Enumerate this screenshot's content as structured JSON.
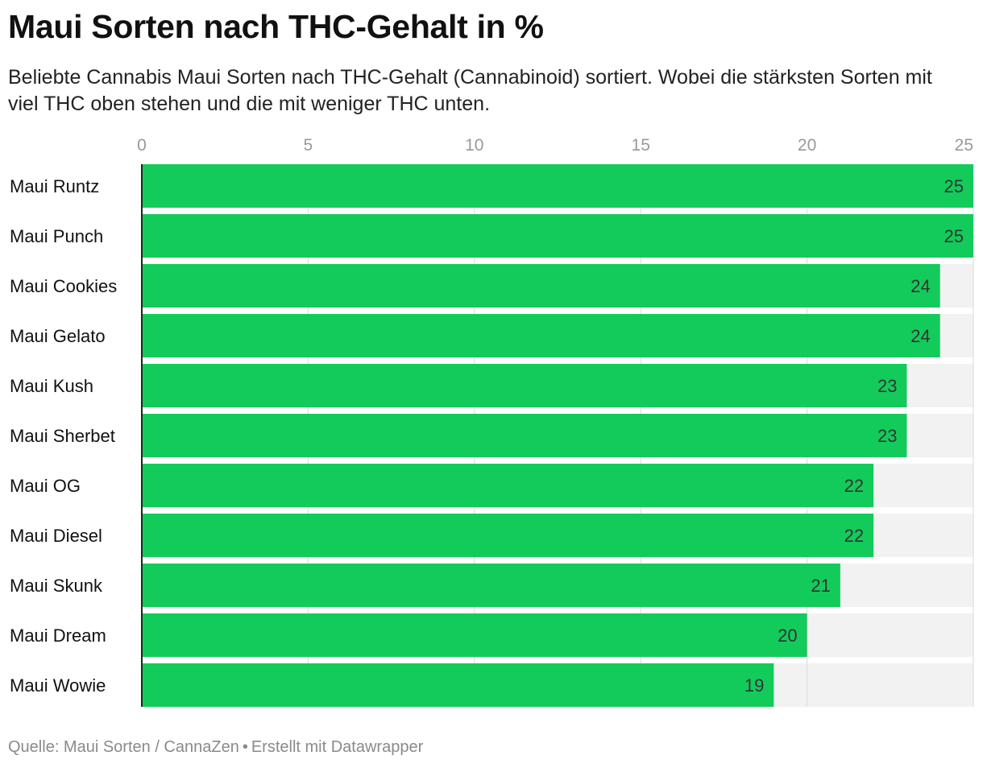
{
  "header": {
    "title": "Maui Sorten nach THC-Gehalt in %",
    "subtitle": "Beliebte Cannabis Maui Sorten nach THC-Gehalt (Cannabinoid) sortiert. Wobei die stärksten Sorten mit viel THC oben stehen und die mit weniger THC unten."
  },
  "footer": {
    "source": "Quelle: Maui Sorten / CannaZen",
    "separator": "•",
    "credit": "Erstellt mit Datawrapper"
  },
  "colors": {
    "bar": "#13cb5a",
    "track": "#f2f2f2",
    "grid": "#d9d9d9",
    "tick_label": "#999999",
    "value_label": "#333333",
    "category_label": "#111111",
    "axis_line": "#222222"
  },
  "chart_data": {
    "type": "bar",
    "orientation": "horizontal",
    "categories": [
      "Maui Runtz",
      "Maui Punch",
      "Maui Cookies",
      "Maui Gelato",
      "Maui Kush",
      "Maui Sherbet",
      "Maui OG",
      "Maui Diesel",
      "Maui Skunk",
      "Maui Dream",
      "Maui Wowie"
    ],
    "values": [
      25,
      25,
      24,
      24,
      23,
      23,
      22,
      22,
      21,
      20,
      19
    ],
    "xlim": [
      0,
      25
    ],
    "xticks": [
      0,
      5,
      10,
      15,
      20,
      25
    ],
    "xaxis_position": "top",
    "data_labels": true,
    "grid": true,
    "title": "Maui Sorten nach THC-Gehalt in %",
    "xlabel": "",
    "ylabel": ""
  }
}
